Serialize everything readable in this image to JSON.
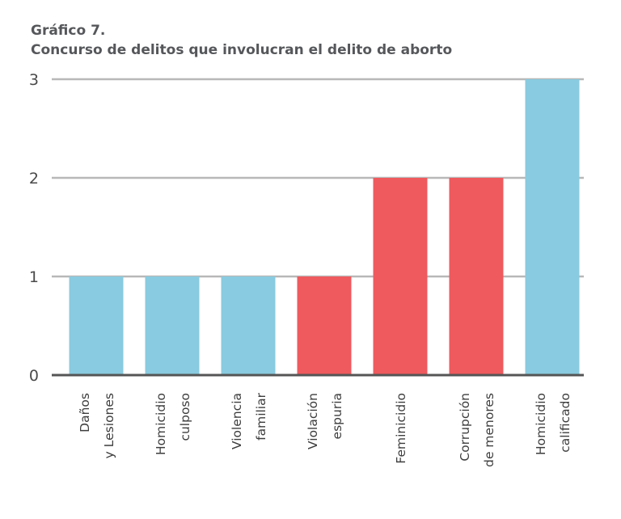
{
  "chart_data": {
    "type": "bar",
    "title": "Gráfico 7.",
    "subtitle": "Concurso de delitos que involucran el delito de aborto",
    "xlabel": "",
    "ylabel": "",
    "ylim": [
      0,
      3
    ],
    "yticks": [
      0,
      1,
      2,
      3
    ],
    "grid": true,
    "categories": [
      [
        "Daños",
        "y Lesiones"
      ],
      [
        "Homicidio",
        "culposo"
      ],
      [
        "Violencia",
        "familiar"
      ],
      [
        "Violación",
        "espuria"
      ],
      [
        "Feminicidio"
      ],
      [
        "Corrupción",
        "de menores"
      ],
      [
        "Homicidio",
        "calificado"
      ]
    ],
    "values": [
      1,
      1,
      1,
      1,
      2,
      2,
      3
    ],
    "bar_colors": [
      "#89cbe0",
      "#89cbe0",
      "#89cbe0",
      "#ee5a5e",
      "#ee5a5e",
      "#ee5a5e",
      "#89cbe0"
    ]
  },
  "colors": {
    "blue": "#89cbe0",
    "red": "#ee5a5e",
    "grid": "#b8b8b8",
    "axis": "#555555"
  }
}
